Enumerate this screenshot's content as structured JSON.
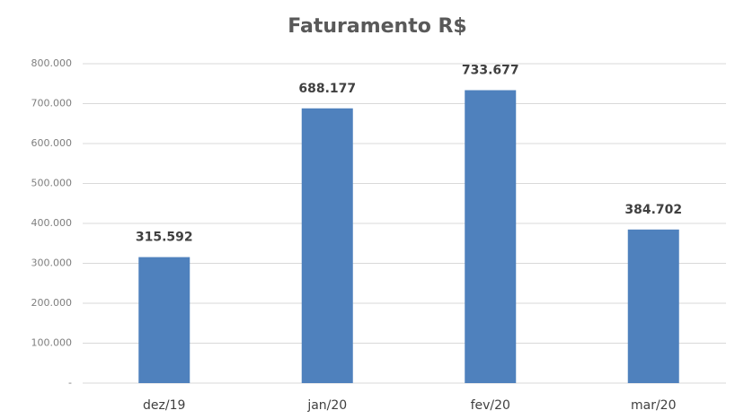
{
  "chart_data": {
    "type": "bar",
    "title": "Faturamento R$",
    "categories": [
      "dez/19",
      "jan/20",
      "fev/20",
      "mar/20"
    ],
    "values": [
      315592,
      688177,
      733677,
      384702
    ],
    "value_labels": [
      "315.592",
      "688.177",
      "733.677",
      "384.702"
    ],
    "color": "#4f81bd",
    "ylim": [
      0,
      800000
    ],
    "yticks": [
      {
        "value": 0,
        "label": "-"
      },
      {
        "value": 100000,
        "label": "100.000"
      },
      {
        "value": 200000,
        "label": "200.000"
      },
      {
        "value": 300000,
        "label": "300.000"
      },
      {
        "value": 400000,
        "label": "400.000"
      },
      {
        "value": 500000,
        "label": "500.000"
      },
      {
        "value": 600000,
        "label": "600.000"
      },
      {
        "value": 700000,
        "label": "700.000"
      },
      {
        "value": 800000,
        "label": "800.000"
      }
    ],
    "grid": true
  }
}
